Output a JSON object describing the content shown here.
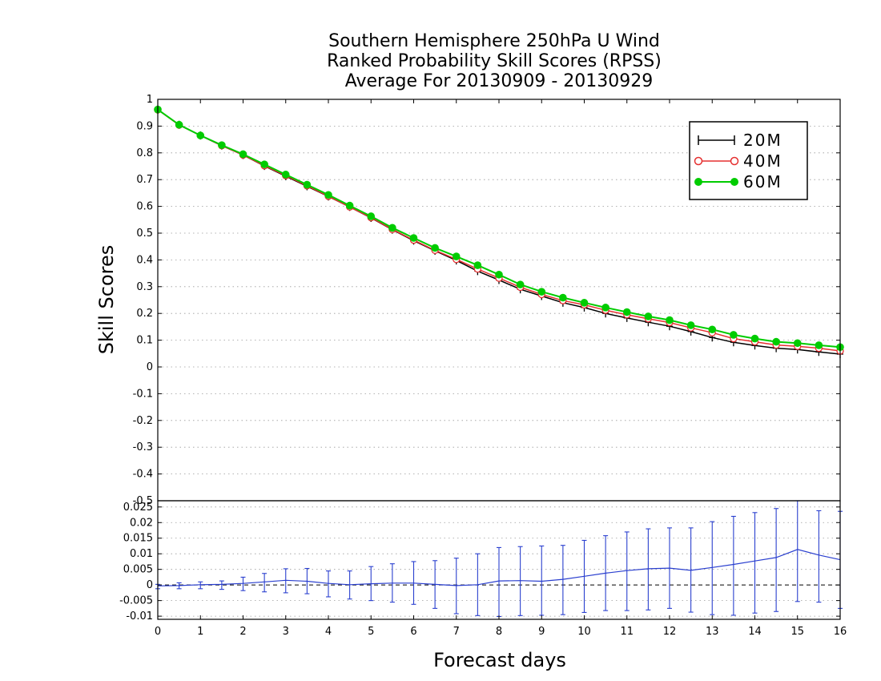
{
  "chart_data": [
    {
      "type": "line",
      "title": [
        "Southern Hemisphere 250hPa U Wind",
        "Ranked Probability Skill Scores (RPSS)",
        "Average For 20130909 - 20130929"
      ],
      "xlabel": "",
      "ylabel": "Skill Scores",
      "xlim": [
        0,
        16
      ],
      "ylim": [
        -0.5,
        1
      ],
      "grid": true,
      "grid_style": "dotted horizontal",
      "legend_position": "top-right",
      "y_ticks": [
        "1",
        "0.9",
        "0.8",
        "0.7",
        "0.6",
        "0.5",
        "0.4",
        "0.3",
        "0.2",
        "0.1",
        "0",
        "-0.1",
        "-0.2",
        "-0.3",
        "-0.4",
        "-0.5"
      ],
      "x": [
        0,
        0.5,
        1,
        1.5,
        2,
        2.5,
        3,
        3.5,
        4,
        4.5,
        5,
        5.5,
        6,
        6.5,
        7,
        7.5,
        8,
        8.5,
        9,
        9.5,
        10,
        10.5,
        11,
        11.5,
        12,
        12.5,
        13,
        13.5,
        14,
        14.5,
        15,
        15.5,
        16
      ],
      "series": [
        {
          "name": "20M",
          "color": "#000000",
          "marker": "plus",
          "values": [
            0.962,
            0.905,
            0.865,
            0.827,
            0.792,
            0.751,
            0.713,
            0.675,
            0.637,
            0.598,
            0.557,
            0.513,
            0.472,
            0.434,
            0.398,
            0.358,
            0.325,
            0.29,
            0.265,
            0.24,
            0.222,
            0.2,
            0.183,
            0.167,
            0.152,
            0.132,
            0.11,
            0.092,
            0.08,
            0.07,
            0.065,
            0.056,
            0.048
          ]
        },
        {
          "name": "40M",
          "color": "#e53030",
          "marker": "open-circle",
          "values": [
            0.961,
            0.904,
            0.865,
            0.827,
            0.792,
            0.752,
            0.715,
            0.677,
            0.638,
            0.598,
            0.558,
            0.514,
            0.474,
            0.436,
            0.402,
            0.366,
            0.332,
            0.298,
            0.271,
            0.248,
            0.232,
            0.212,
            0.195,
            0.18,
            0.166,
            0.146,
            0.128,
            0.106,
            0.094,
            0.082,
            0.077,
            0.07,
            0.06
          ]
        },
        {
          "name": "60M",
          "color": "#00cc00",
          "marker": "filled-circle",
          "values": [
            0.962,
            0.905,
            0.865,
            0.829,
            0.795,
            0.757,
            0.719,
            0.681,
            0.643,
            0.603,
            0.563,
            0.52,
            0.482,
            0.445,
            0.413,
            0.38,
            0.345,
            0.308,
            0.281,
            0.259,
            0.24,
            0.222,
            0.205,
            0.189,
            0.175,
            0.156,
            0.14,
            0.12,
            0.106,
            0.094,
            0.089,
            0.081,
            0.074
          ]
        }
      ]
    },
    {
      "type": "line",
      "title": "",
      "xlabel": "Forecast days",
      "ylabel": "",
      "xlim": [
        0,
        16
      ],
      "ylim": [
        -0.011,
        0.027
      ],
      "grid": true,
      "grid_style": "dotted horizontal",
      "zero_line": "dashed",
      "x_ticks": [
        "0",
        "1",
        "2",
        "3",
        "4",
        "5",
        "6",
        "7",
        "8",
        "9",
        "10",
        "11",
        "12",
        "13",
        "14",
        "15",
        "16"
      ],
      "y_ticks": [
        "0.025",
        "0.02",
        "0.015",
        "0.01",
        "0.005",
        "0",
        "-0.005",
        "-0.01"
      ],
      "x": [
        0,
        0.5,
        1,
        1.5,
        2,
        2.5,
        3,
        3.5,
        4,
        4.5,
        5,
        5.5,
        6,
        6.5,
        7,
        7.5,
        8,
        8.5,
        9,
        9.5,
        10,
        10.5,
        11,
        11.5,
        12,
        12.5,
        13,
        13.5,
        14,
        14.5,
        15,
        15.5,
        16
      ],
      "series": [
        {
          "color": "#2a3fcf",
          "values": [
            -0.0003,
            -0.0002,
            0.0001,
            0.0002,
            0.0005,
            0.001,
            0.0015,
            0.0012,
            0.0005,
            0.0001,
            0.0004,
            0.0006,
            0.0006,
            0.0002,
            -0.0002,
            0.0001,
            0.0013,
            0.0014,
            0.0012,
            0.0018,
            0.0028,
            0.0038,
            0.0046,
            0.0052,
            0.0054,
            0.0047,
            0.0056,
            0.0066,
            0.0077,
            0.0088,
            0.0114,
            0.0096,
            0.0081
          ],
          "error_low": [
            -0.0012,
            -0.0012,
            -0.0012,
            -0.0014,
            -0.0018,
            -0.0022,
            -0.0025,
            -0.0028,
            -0.0038,
            -0.0045,
            -0.005,
            -0.0055,
            -0.0062,
            -0.0075,
            -0.0092,
            -0.0098,
            -0.0101,
            -0.0098,
            -0.0097,
            -0.0095,
            -0.0088,
            -0.0082,
            -0.0082,
            -0.008,
            -0.0075,
            -0.0087,
            -0.0095,
            -0.0097,
            -0.009,
            -0.0085,
            -0.0053,
            -0.0055,
            -0.0075
          ],
          "error_high": [
            0.0002,
            0.0007,
            0.001,
            0.0013,
            0.0025,
            0.0037,
            0.0052,
            0.0053,
            0.0045,
            0.0045,
            0.0059,
            0.0068,
            0.0075,
            0.0078,
            0.0086,
            0.01,
            0.012,
            0.0123,
            0.0125,
            0.0127,
            0.0143,
            0.0158,
            0.017,
            0.018,
            0.0183,
            0.0183,
            0.0203,
            0.022,
            0.0232,
            0.0245,
            0.0273,
            0.0238,
            0.0236
          ]
        }
      ]
    }
  ]
}
